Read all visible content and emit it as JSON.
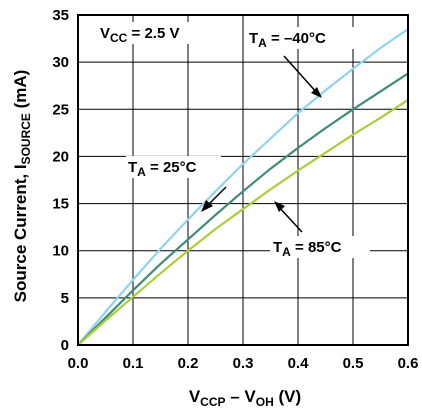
{
  "chart_data": {
    "type": "line",
    "xlabel": {
      "main": "V",
      "sub1": "CCP",
      "mid": " – V",
      "sub2": "OH",
      "unit": " (V)"
    },
    "ylabel": {
      "main": "Source Current, I",
      "sub": "SOURCE",
      "unit": " (mA)"
    },
    "xlim": [
      0,
      0.6
    ],
    "ylim": [
      0,
      35
    ],
    "x_ticks": [
      "0.0",
      "0.1",
      "0.2",
      "0.3",
      "0.4",
      "0.5",
      "0.6"
    ],
    "y_ticks": [
      "0",
      "5",
      "10",
      "15",
      "20",
      "25",
      "30",
      "35"
    ],
    "grid": true,
    "annotations": {
      "vcc": {
        "main": "V",
        "sub": "CC",
        "rest": " = 2.5 V"
      },
      "t_cold": {
        "main": "T",
        "sub": "A",
        "rest": " = –40°C"
      },
      "t_room": {
        "main": "T",
        "sub": "A",
        "rest": " = 25°C"
      },
      "t_hot": {
        "main": "T",
        "sub": "A",
        "rest": " = 85°C"
      }
    },
    "series": [
      {
        "temp": "-40",
        "color": "#8fd3ee",
        "x": [
          0,
          0.05,
          0.1,
          0.15,
          0.2,
          0.25,
          0.3,
          0.35,
          0.4,
          0.45,
          0.5,
          0.55,
          0.6
        ],
        "y": [
          0,
          3.5,
          6.9,
          10.2,
          13.3,
          16.3,
          19.2,
          21.9,
          24.6,
          27.0,
          29.3,
          31.5,
          33.5
        ]
      },
      {
        "temp": "25",
        "color": "#3e8b78",
        "x": [
          0,
          0.05,
          0.1,
          0.15,
          0.2,
          0.25,
          0.3,
          0.35,
          0.4,
          0.45,
          0.5,
          0.55,
          0.6
        ],
        "y": [
          0,
          2.9,
          5.8,
          8.6,
          11.2,
          13.8,
          16.3,
          18.7,
          20.9,
          23.0,
          25.0,
          26.9,
          28.8
        ]
      },
      {
        "temp": "85",
        "color": "#a9cf38",
        "x": [
          0,
          0.05,
          0.1,
          0.15,
          0.2,
          0.25,
          0.3,
          0.35,
          0.4,
          0.45,
          0.5,
          0.55,
          0.6
        ],
        "y": [
          0,
          2.6,
          5.1,
          7.6,
          10.0,
          12.3,
          14.4,
          16.5,
          18.5,
          20.4,
          22.3,
          24.1,
          26.0
        ]
      }
    ]
  }
}
